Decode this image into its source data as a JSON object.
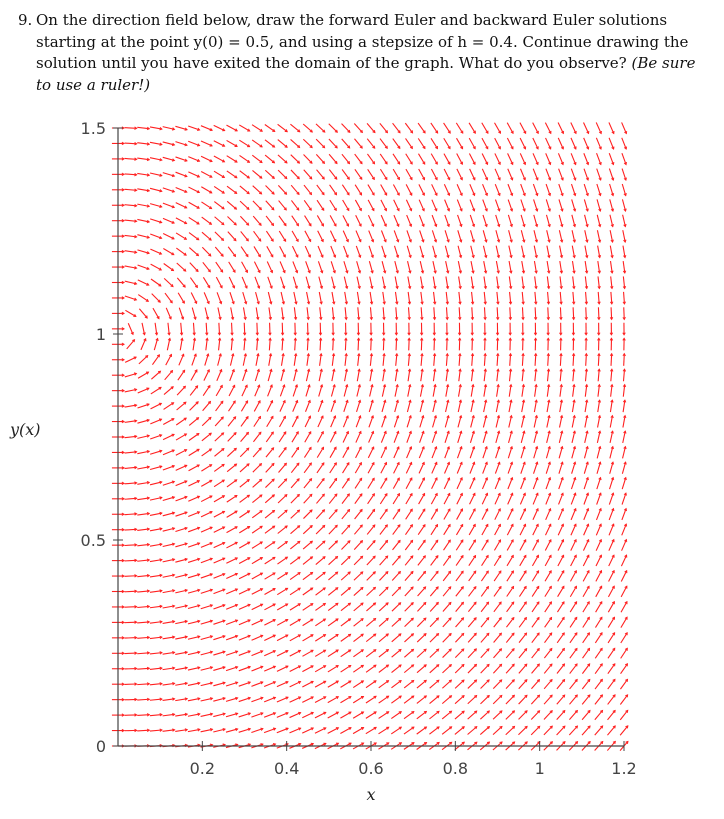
{
  "problem": {
    "number": "9.",
    "line1": "On the direction field below, draw the forward Euler and backward Euler solutions",
    "line2": "starting at the point y(0) = 0.5, and using a stepsize of h = 0.4. Continue drawing the",
    "line3": "solution until you have exited the domain of the graph. What do you observe?",
    "hint": "(Be sure",
    "line4": "to use a ruler!)"
  },
  "chart_data": {
    "type": "direction-field",
    "xlabel": "x",
    "ylabel": "y(x)",
    "xlim": [
      0,
      1.2
    ],
    "ylim": [
      0,
      1.5
    ],
    "x_ticks": [
      0.2,
      0.4,
      0.6,
      0.8,
      1,
      1.2
    ],
    "x_tick_labels": [
      "0.2",
      "0.4",
      "0.6",
      "0.8",
      "1",
      "1.2"
    ],
    "y_ticks": [
      0,
      0.5,
      1,
      1.5
    ],
    "y_tick_labels": [
      "0",
      "0.5",
      "1",
      "1.5"
    ],
    "grid_x_count": 40,
    "grid_y_count": 40,
    "arrow_color": "#ff2020",
    "axis_color": "#444444"
  }
}
